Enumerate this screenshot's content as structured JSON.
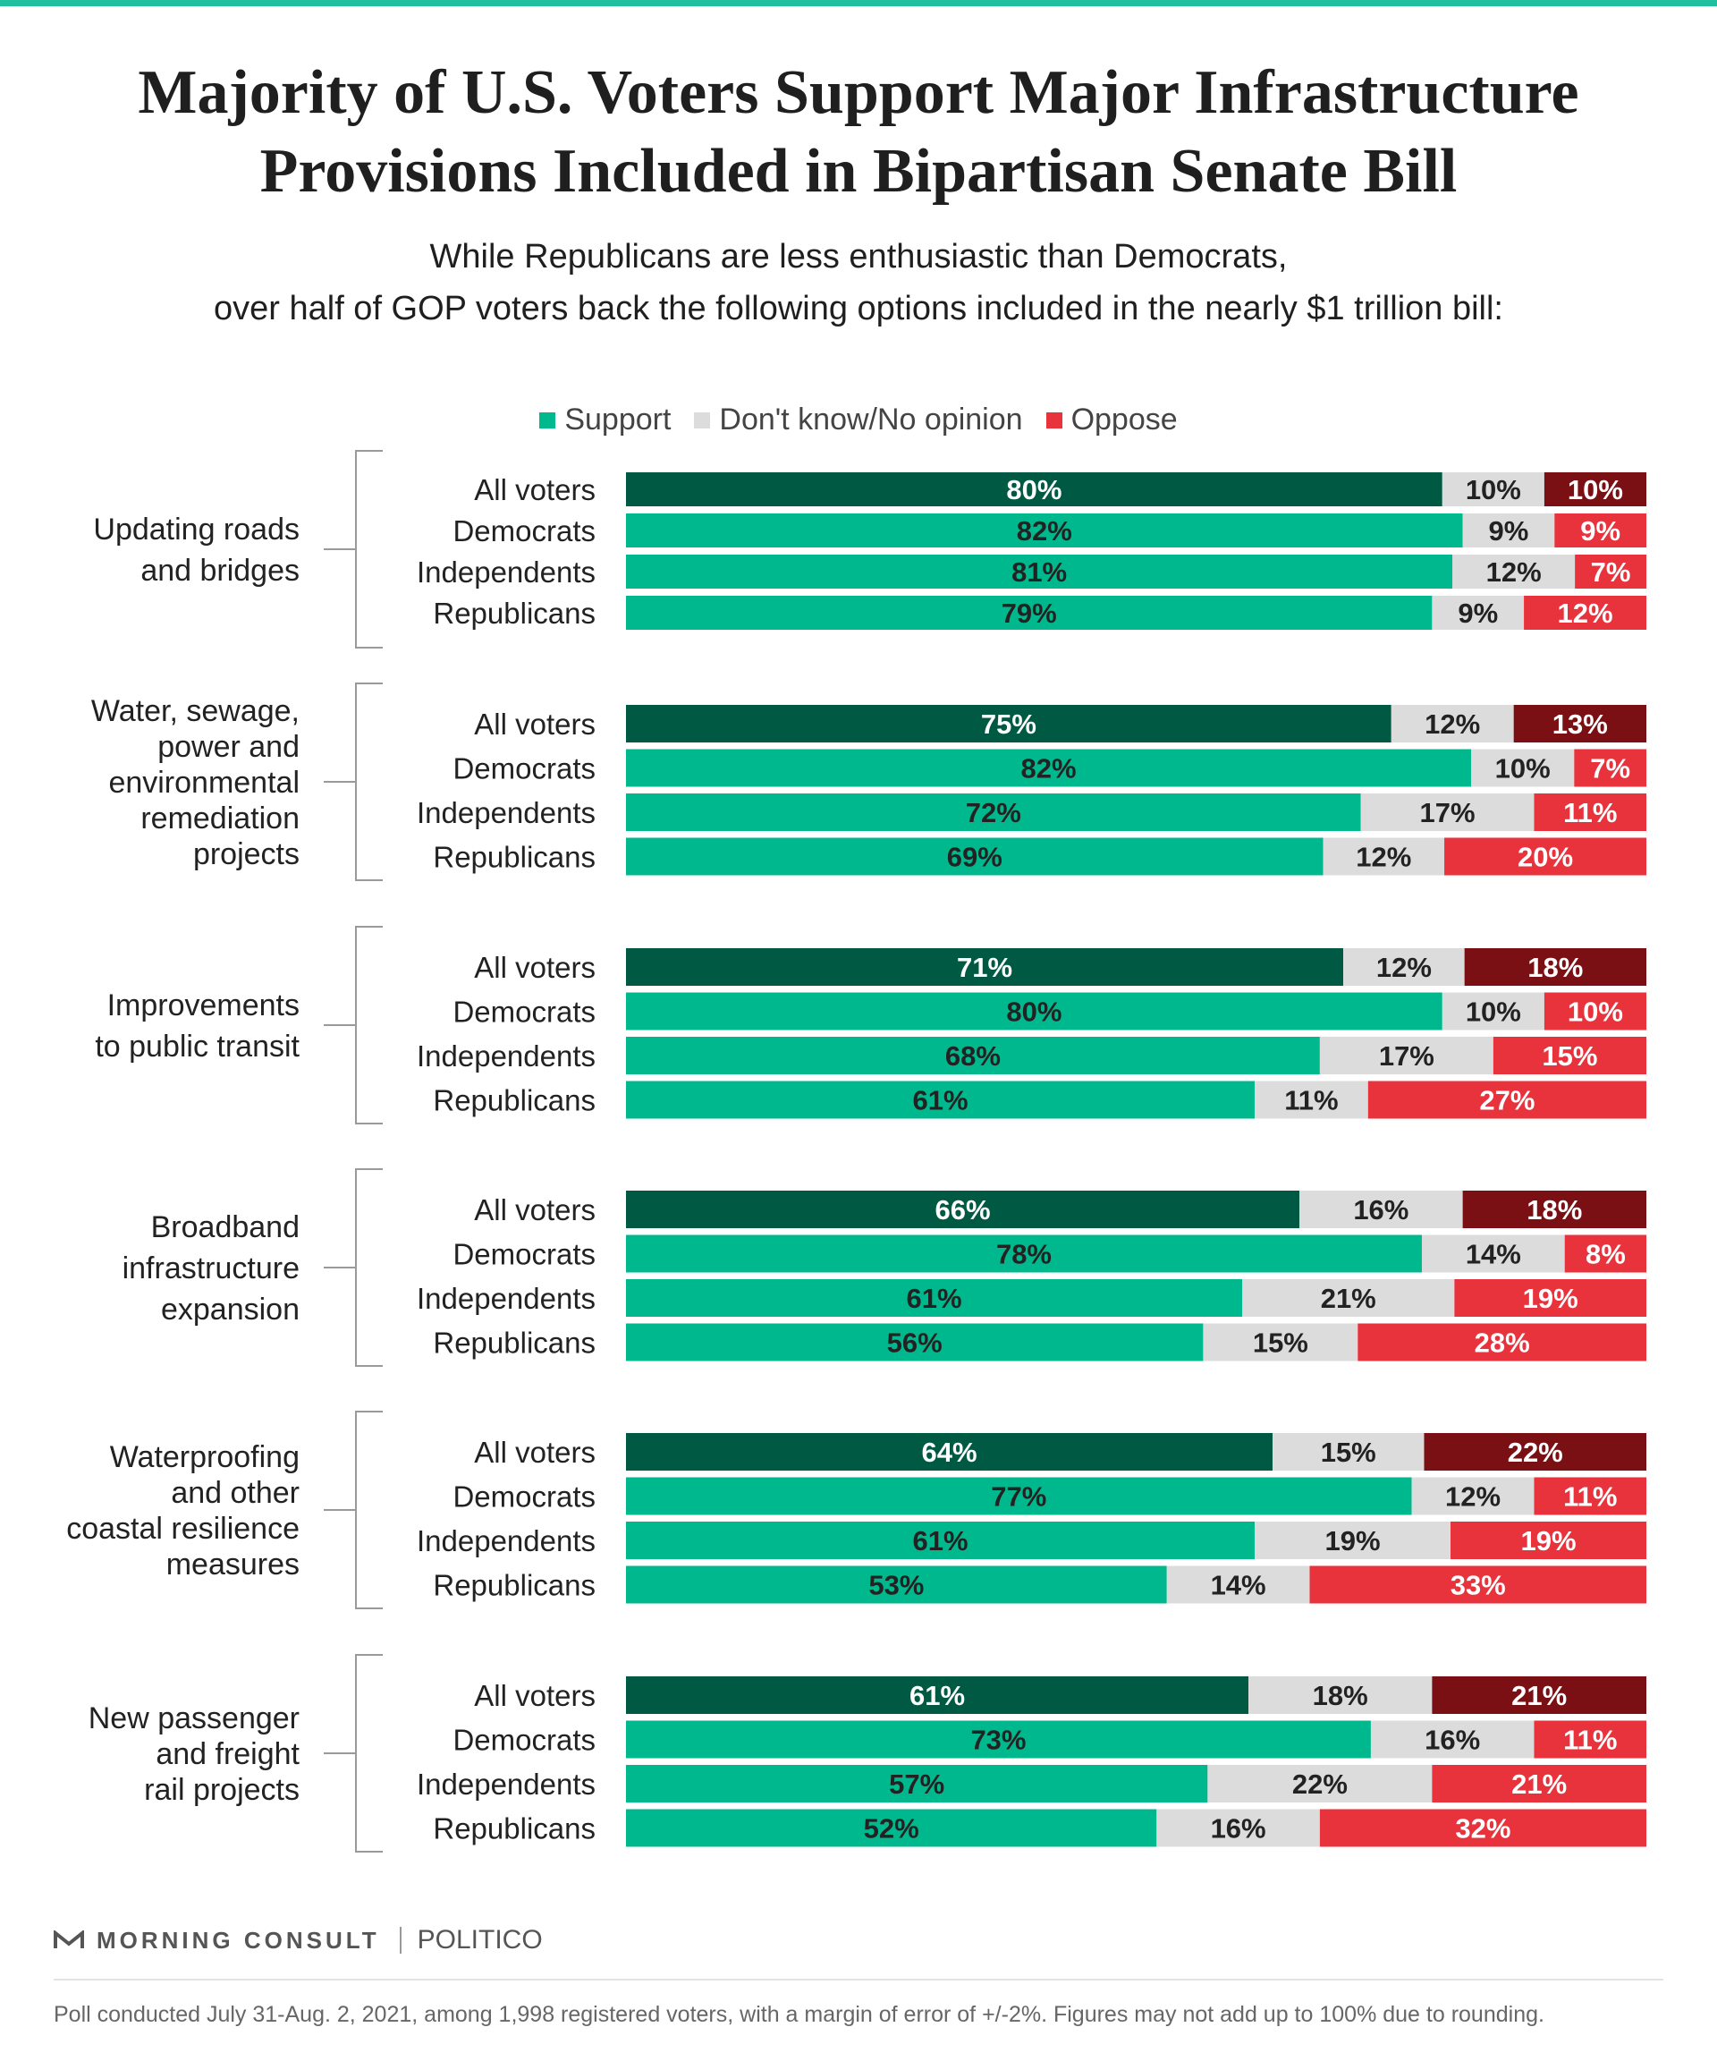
{
  "header": {
    "title_lines": [
      "Majority of U.S. Voters Support Major Infrastructure",
      "Provisions Included in Bipartisan Senate Bill"
    ],
    "subtitle_lines": [
      "While Republicans are less enthusiastic than Democrats,",
      "over half of GOP voters back the following options included in the nearly $1 trillion bill:"
    ]
  },
  "legend": {
    "support": "Support",
    "no_opinion": "Don't know/No opinion",
    "oppose": "Oppose"
  },
  "colors": {
    "support": "#00b88d",
    "support_all": "#005a43",
    "no_opinion": "#dcdcdc",
    "oppose": "#e8323c",
    "oppose_all": "#7b1014"
  },
  "chart_data": {
    "type": "bar",
    "orientation": "horizontal",
    "stacked": true,
    "segments": [
      "Support",
      "Don't know/No opinion",
      "Oppose"
    ],
    "value_format": "{v}%",
    "groups": [
      {
        "label": "Updating roads and bridges",
        "rows": [
          {
            "label": "All voters",
            "values": [
              80,
              10,
              10
            ]
          },
          {
            "label": "Democrats",
            "values": [
              82,
              9,
              9
            ]
          },
          {
            "label": "Independents",
            "values": [
              81,
              12,
              7
            ]
          },
          {
            "label": "Republicans",
            "values": [
              79,
              9,
              12
            ]
          }
        ]
      },
      {
        "label": "Water, sewage, power and environmental remediation projects",
        "rows": [
          {
            "label": "All voters",
            "values": [
              75,
              12,
              13
            ]
          },
          {
            "label": "Democrats",
            "values": [
              82,
              10,
              7
            ]
          },
          {
            "label": "Independents",
            "values": [
              72,
              17,
              11
            ]
          },
          {
            "label": "Republicans",
            "values": [
              69,
              12,
              20
            ]
          }
        ]
      },
      {
        "label": "Improvements to public transit",
        "rows": [
          {
            "label": "All voters",
            "values": [
              71,
              12,
              18
            ]
          },
          {
            "label": "Democrats",
            "values": [
              80,
              10,
              10
            ]
          },
          {
            "label": "Independents",
            "values": [
              68,
              17,
              15
            ]
          },
          {
            "label": "Republicans",
            "values": [
              61,
              11,
              27
            ]
          }
        ]
      },
      {
        "label": "Broadband infrastructure expansion",
        "rows": [
          {
            "label": "All voters",
            "values": [
              66,
              16,
              18
            ]
          },
          {
            "label": "Democrats",
            "values": [
              78,
              14,
              8
            ]
          },
          {
            "label": "Independents",
            "values": [
              61,
              21,
              19
            ]
          },
          {
            "label": "Republicans",
            "values": [
              56,
              15,
              28
            ]
          }
        ]
      },
      {
        "label": "Waterproofing and other coastal resilience measures",
        "rows": [
          {
            "label": "All voters",
            "values": [
              64,
              15,
              22
            ]
          },
          {
            "label": "Democrats",
            "values": [
              77,
              12,
              11
            ]
          },
          {
            "label": "Independents",
            "values": [
              61,
              19,
              19
            ]
          },
          {
            "label": "Republicans",
            "values": [
              53,
              14,
              33
            ]
          }
        ]
      },
      {
        "label": "New passenger and freight rail projects",
        "rows": [
          {
            "label": "All voters",
            "values": [
              61,
              18,
              21
            ]
          },
          {
            "label": "Democrats",
            "values": [
              73,
              16,
              11
            ]
          },
          {
            "label": "Independents",
            "values": [
              57,
              22,
              21
            ]
          },
          {
            "label": "Republicans",
            "values": [
              52,
              16,
              32
            ]
          }
        ]
      }
    ]
  },
  "footer": {
    "brand": "MORNING CONSULT",
    "partner": "POLITICO",
    "note": "Poll conducted July 31-Aug. 2, 2021, among 1,998 registered voters, with a margin of error of +/-2%. Figures may not add up to 100% due to rounding."
  }
}
